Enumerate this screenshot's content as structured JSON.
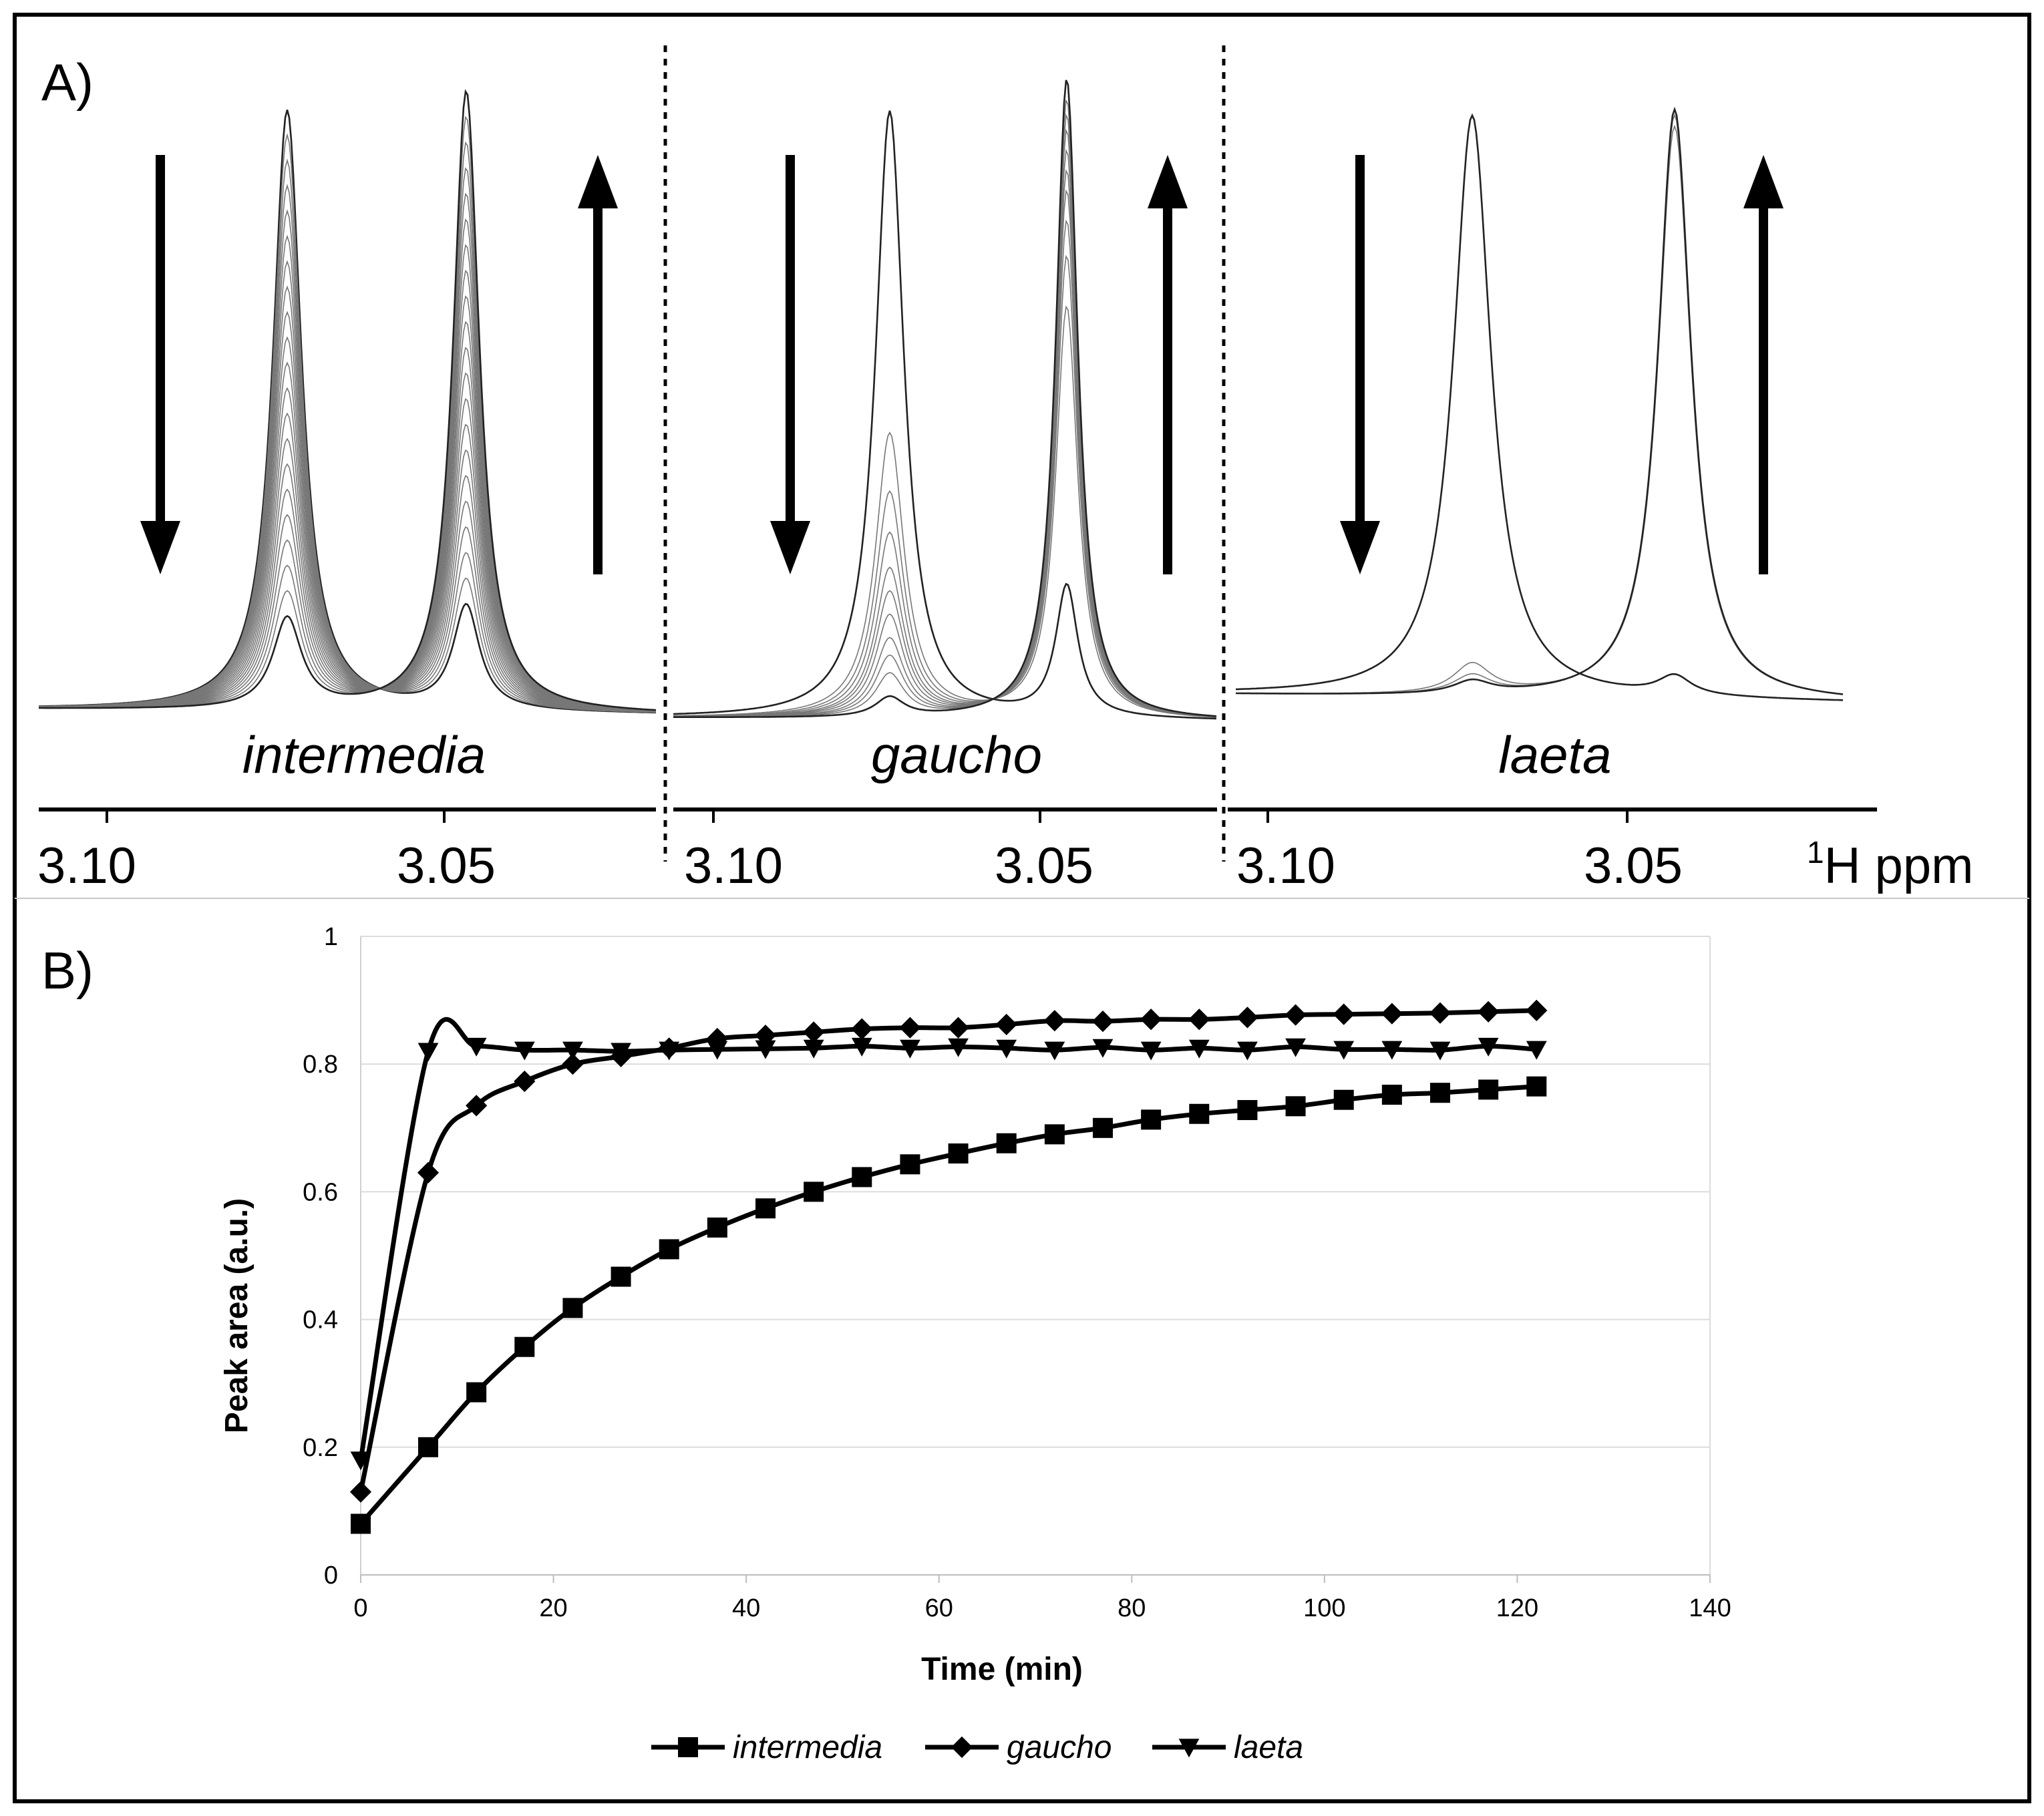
{
  "panel_a": {
    "label": "A)",
    "axis_unit_sup": "1",
    "axis_unit": "H ppm",
    "subpanels": [
      {
        "name": "intermedia",
        "ticks": [
          "3.10",
          "3.05"
        ],
        "direction_left": "decreasing",
        "direction_right": "increasing"
      },
      {
        "name": "gaucho",
        "ticks": [
          "3.10",
          "3.05"
        ],
        "direction_left": "decreasing",
        "direction_right": "increasing"
      },
      {
        "name": "laeta",
        "ticks": [
          "3.10",
          "3.05"
        ],
        "direction_left": "decreasing",
        "direction_right": "increasing"
      }
    ]
  },
  "panel_b": {
    "label": "B)"
  },
  "chart_data": {
    "type": "line",
    "title": "",
    "xlabel": "Time (min)",
    "ylabel": "Peak area (a.u.)",
    "xlim": [
      0,
      140
    ],
    "ylim": [
      0,
      1
    ],
    "xticks": [
      "0",
      "20",
      "40",
      "60",
      "80",
      "100",
      "120",
      "140"
    ],
    "yticks": [
      "0",
      "0.2",
      "0.4",
      "0.6",
      "0.8",
      "1"
    ],
    "grid": true,
    "legend": "bottom",
    "series": [
      {
        "name": "intermedia",
        "marker": "square",
        "x": [
          0,
          7,
          12,
          17,
          22,
          27,
          32,
          37,
          42,
          47,
          52,
          57,
          62,
          67,
          72,
          77,
          82,
          87,
          92,
          97,
          102,
          107,
          112,
          117,
          122
        ],
        "y": [
          0.08,
          0.2,
          0.286,
          0.357,
          0.418,
          0.467,
          0.51,
          0.544,
          0.574,
          0.6,
          0.623,
          0.643,
          0.66,
          0.676,
          0.69,
          0.7,
          0.713,
          0.722,
          0.728,
          0.734,
          0.744,
          0.752,
          0.755,
          0.76,
          0.765
        ]
      },
      {
        "name": "gaucho",
        "marker": "diamond",
        "x": [
          0,
          7,
          12,
          17,
          22,
          27,
          32,
          37,
          42,
          47,
          52,
          57,
          62,
          67,
          72,
          77,
          82,
          87,
          92,
          97,
          102,
          107,
          112,
          117,
          122
        ],
        "y": [
          0.13,
          0.63,
          0.735,
          0.773,
          0.8,
          0.812,
          0.825,
          0.84,
          0.845,
          0.85,
          0.855,
          0.857,
          0.857,
          0.862,
          0.868,
          0.867,
          0.87,
          0.87,
          0.873,
          0.877,
          0.878,
          0.879,
          0.88,
          0.882,
          0.884
        ]
      },
      {
        "name": "laeta",
        "marker": "triangle-down",
        "x": [
          0,
          7,
          12,
          17,
          22,
          27,
          32,
          37,
          42,
          47,
          52,
          57,
          62,
          67,
          72,
          77,
          82,
          87,
          92,
          97,
          102,
          107,
          112,
          117,
          122
        ],
        "y": [
          0.18,
          0.82,
          0.828,
          0.822,
          0.822,
          0.82,
          0.822,
          0.823,
          0.824,
          0.825,
          0.828,
          0.825,
          0.827,
          0.825,
          0.822,
          0.826,
          0.822,
          0.825,
          0.822,
          0.827,
          0.823,
          0.823,
          0.822,
          0.828,
          0.823
        ]
      }
    ]
  }
}
